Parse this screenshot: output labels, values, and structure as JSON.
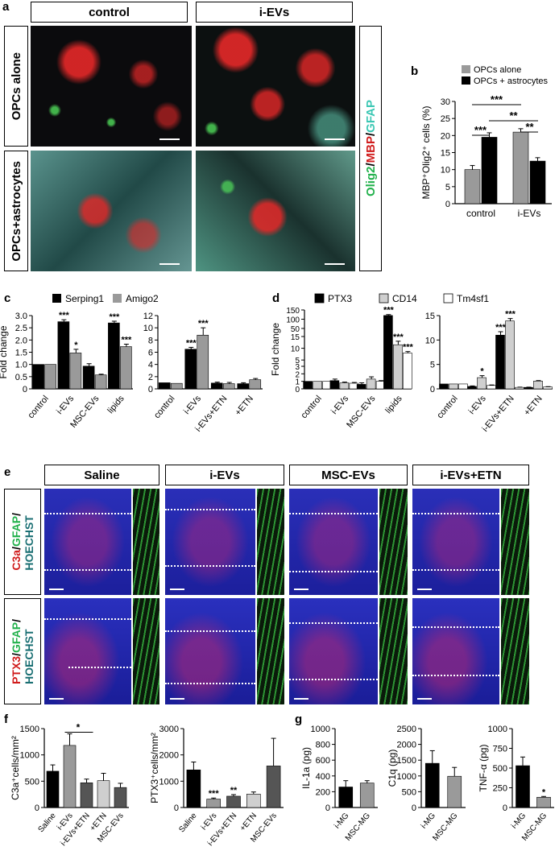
{
  "panel_letters": {
    "a": "a",
    "b": "b",
    "c": "c",
    "d": "d",
    "e": "e",
    "f": "f",
    "g": "g"
  },
  "panel_a": {
    "col_headers": [
      "control",
      "i-EVs"
    ],
    "row_headers": [
      "OPCs alone",
      "OPCs+astrocytes"
    ],
    "stain_parts": [
      "Olig2",
      "/",
      "MBP",
      "/",
      "GFAP"
    ],
    "stain_colors": [
      "#22b14c",
      "#000000",
      "#d01c1c",
      "#000000",
      "#3cc7b4"
    ]
  },
  "colors": {
    "black": "#000000",
    "dark_gray": "#555555",
    "gray": "#9a9a9a",
    "light_gray": "#cfcfcf",
    "white": "#ffffff"
  },
  "chart_data": [
    {
      "id": "b",
      "type": "bar",
      "ylabel": "MBP⁺Olig2⁺ cells (%)",
      "ylim": [
        0,
        30
      ],
      "yticks": [
        0,
        5,
        10,
        15,
        20,
        25,
        30
      ],
      "categories": [
        "control",
        "i-EVs"
      ],
      "series": [
        {
          "name": "OPCs alone",
          "color": "#9a9a9a",
          "values": [
            10,
            21
          ],
          "errors": [
            1.2,
            1.0
          ]
        },
        {
          "name": "OPCs + astrocytes",
          "color": "#000000",
          "values": [
            19.5,
            12.5
          ],
          "errors": [
            1.3,
            1.0
          ]
        }
      ],
      "significance": [
        "***",
        "***",
        "**",
        "**"
      ]
    },
    {
      "id": "c1",
      "type": "bar",
      "ylabel": "Fold change",
      "ylim": [
        0,
        3.0
      ],
      "yticks": [
        "0",
        "0.5",
        "1.0",
        "1.5",
        "2.0",
        "2.5",
        "3.0"
      ],
      "categories": [
        "control",
        "i-EVs",
        "MSC-EVs",
        "lipids"
      ],
      "series": [
        {
          "name": "Serping1",
          "color": "#000000",
          "values": [
            1.0,
            2.75,
            0.93,
            2.7
          ],
          "errors": [
            0,
            0.08,
            0.1,
            0.07
          ],
          "stars": [
            "",
            "***",
            "",
            "***"
          ]
        },
        {
          "name": "Amigo2",
          "color": "#9a9a9a",
          "values": [
            1.0,
            1.47,
            0.57,
            1.73
          ],
          "errors": [
            0,
            0.15,
            0.03,
            0.1
          ],
          "stars": [
            "",
            "*",
            "",
            "***"
          ]
        }
      ]
    },
    {
      "id": "c2",
      "type": "bar",
      "ylim": [
        0,
        12
      ],
      "yticks": [
        "0",
        "2",
        "4",
        "6",
        "8",
        "10",
        "12"
      ],
      "categories": [
        "control",
        "i-EVs",
        "i-EVs+ETN",
        "+ETN"
      ],
      "series": [
        {
          "name": "Serping1",
          "color": "#000000",
          "values": [
            1.0,
            6.5,
            0.95,
            0.85
          ],
          "errors": [
            0,
            0.3,
            0.15,
            0.15
          ],
          "stars": [
            "",
            "***",
            "",
            ""
          ]
        },
        {
          "name": "Amigo2",
          "color": "#9a9a9a",
          "values": [
            0.9,
            8.8,
            0.85,
            1.5
          ],
          "errors": [
            0,
            1.2,
            0.2,
            0.2
          ],
          "stars": [
            "",
            "***",
            "",
            ""
          ]
        }
      ]
    },
    {
      "id": "d1",
      "type": "bar",
      "ylabel": "Fold change",
      "ylim": [
        0,
        150
      ],
      "yticks": [
        "0",
        "1",
        "2",
        "3",
        "5",
        "10",
        "15",
        "50",
        "100",
        "150"
      ],
      "categories": [
        "control",
        "i-EVs",
        "MSC-EVs",
        "lipids"
      ],
      "series": [
        {
          "name": "PTX3",
          "color": "#000000",
          "values": [
            1.0,
            1.1,
            0.6,
            120
          ],
          "errors": [
            0,
            0.2,
            0.2,
            5
          ],
          "stars": [
            "",
            "",
            "",
            "***"
          ]
        },
        {
          "name": "CD14",
          "color": "#cfcfcf",
          "values": [
            1.0,
            0.8,
            1.3,
            11.5
          ],
          "errors": [
            0,
            0.1,
            0.3,
            1.5
          ],
          "stars": [
            "",
            "",
            "",
            "***"
          ]
        },
        {
          "name": "Tm4sf1",
          "color": "#ffffff",
          "values": [
            1.0,
            0.75,
            1.0,
            8
          ],
          "errors": [
            0,
            0.1,
            0.1,
            0.6
          ],
          "stars": [
            "",
            "",
            "",
            "***"
          ]
        }
      ]
    },
    {
      "id": "d2",
      "type": "bar",
      "ylim": [
        0,
        15
      ],
      "yticks": [
        "0",
        "5",
        "10",
        "15"
      ],
      "categories": [
        "control",
        "i-EVs",
        "i-EVs+ETN",
        "+ETN"
      ],
      "series": [
        {
          "name": "PTX3",
          "color": "#000000",
          "values": [
            1.0,
            0.5,
            11.0,
            0.3
          ],
          "errors": [
            0,
            0.1,
            0.7,
            0.05
          ],
          "stars": [
            "",
            "",
            "***",
            ""
          ]
        },
        {
          "name": "CD14",
          "color": "#cfcfcf",
          "values": [
            1.0,
            2.3,
            13.9,
            1.6
          ],
          "errors": [
            0,
            0.4,
            0.5,
            0.1
          ],
          "stars": [
            "",
            "*",
            "***",
            ""
          ]
        },
        {
          "name": "Tm4sf1",
          "color": "#ffffff",
          "values": [
            1.0,
            0.7,
            0.3,
            0.4
          ],
          "errors": [
            0,
            0.1,
            0.05,
            0.05
          ],
          "stars": [
            "",
            "",
            "",
            ""
          ]
        }
      ]
    },
    {
      "id": "f1",
      "type": "bar",
      "ylabel": "C3a⁺cells/mm²",
      "ylim": [
        0,
        1500
      ],
      "yticks": [
        "0",
        "500",
        "1000",
        "1500"
      ],
      "categories": [
        "Saline",
        "i-EVs",
        "i-EVs+ETN",
        "+ETN",
        "MSC-EVs"
      ],
      "colors": [
        "#000000",
        "#9a9a9a",
        "#555555",
        "#cfcfcf",
        "#555555"
      ],
      "values": [
        690,
        1180,
        470,
        510,
        380
      ],
      "errors": [
        120,
        220,
        70,
        140,
        80
      ],
      "stars": [
        "",
        "",
        "",
        "",
        ""
      ],
      "bracket_label": "*"
    },
    {
      "id": "f2",
      "type": "bar",
      "ylabel": "PTX3⁺cells/mm²",
      "ylim": [
        0,
        3000
      ],
      "yticks": [
        "0",
        "1000",
        "2000",
        "3000"
      ],
      "categories": [
        "Saline",
        "i-EVs",
        "i-EVs+ETN",
        "+ETN",
        "MSC-EVs"
      ],
      "colors": [
        "#000000",
        "#9a9a9a",
        "#555555",
        "#cfcfcf",
        "#555555"
      ],
      "values": [
        1430,
        320,
        430,
        510,
        1580
      ],
      "errors": [
        300,
        40,
        60,
        80,
        1050
      ],
      "stars": [
        "",
        "***",
        "**",
        "",
        ""
      ]
    },
    {
      "id": "g1",
      "type": "bar",
      "ylabel": "IL-1a (pg)",
      "ylim": [
        0,
        1000
      ],
      "yticks": [
        "0",
        "200",
        "400",
        "600",
        "800",
        "1000"
      ],
      "categories": [
        "i-MG",
        "MSC-MG"
      ],
      "colors": [
        "#000000",
        "#9a9a9a"
      ],
      "values": [
        260,
        310
      ],
      "errors": [
        80,
        30
      ],
      "stars": [
        "",
        ""
      ]
    },
    {
      "id": "g2",
      "type": "bar",
      "ylabel": "C1q (pg)",
      "ylim": [
        0,
        2500
      ],
      "yticks": [
        "0",
        "500",
        "1000",
        "1500",
        "2000",
        "2500"
      ],
      "categories": [
        "i-MG",
        "MSC-MG"
      ],
      "colors": [
        "#000000",
        "#9a9a9a"
      ],
      "values": [
        1400,
        990
      ],
      "errors": [
        400,
        280
      ],
      "stars": [
        "",
        ""
      ]
    },
    {
      "id": "g3",
      "type": "bar",
      "ylabel": "TNF-α (pg)",
      "ylim": [
        0,
        1000
      ],
      "yticks": [
        "0",
        "250",
        "500",
        "750",
        "1000"
      ],
      "categories": [
        "i-MG",
        "MSC-MG"
      ],
      "colors": [
        "#000000",
        "#9a9a9a"
      ],
      "values": [
        530,
        130
      ],
      "errors": [
        110,
        10
      ],
      "stars": [
        "",
        "*"
      ]
    }
  ],
  "panel_e": {
    "col_headers": [
      "Saline",
      "i-EVs",
      "MSC-EVs",
      "i-EVs+ETN"
    ],
    "row1_label": [
      "C3a",
      "/",
      "GFAP",
      "/",
      "HOECHST"
    ],
    "row2_label": [
      "PTX3",
      "/",
      "GFAP",
      "/",
      "HOECHST"
    ],
    "label_colors": [
      "#d01c1c",
      "#000000",
      "#22b14c",
      "#000000",
      "#1a6f73"
    ]
  }
}
